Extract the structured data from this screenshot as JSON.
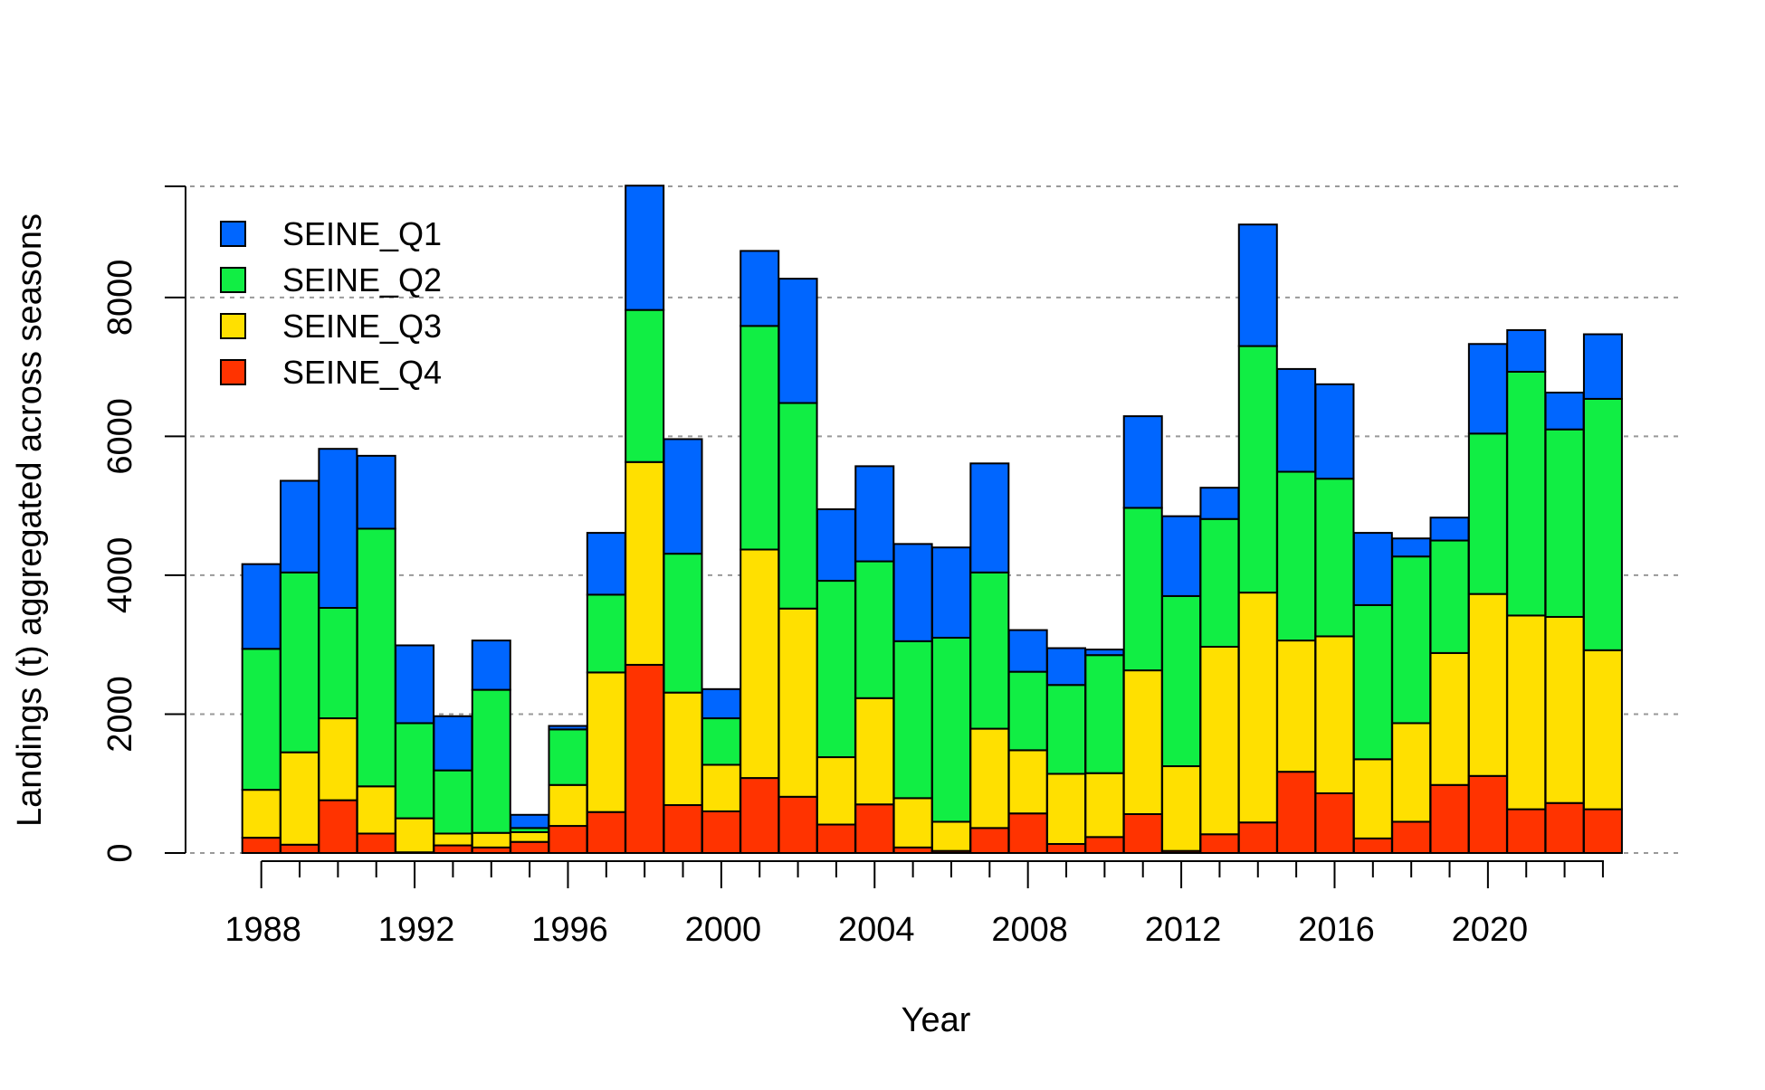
{
  "chart_data": {
    "type": "bar",
    "stacked": true,
    "xlabel": "Year",
    "ylabel": "Landings (t) aggregated across seasons",
    "ylim": [
      0,
      9600
    ],
    "yticks": [
      0,
      2000,
      4000,
      6000,
      8000
    ],
    "xtick_labels": [
      "1988",
      "1992",
      "1996",
      "2000",
      "2004",
      "2008",
      "2012",
      "2016",
      "2020"
    ],
    "grid": true,
    "legend_position": "top-left",
    "categories": [
      1988,
      1989,
      1990,
      1991,
      1992,
      1993,
      1994,
      1995,
      1996,
      1997,
      1998,
      1999,
      2000,
      2001,
      2002,
      2003,
      2004,
      2005,
      2006,
      2007,
      2008,
      2009,
      2010,
      2011,
      2012,
      2013,
      2014,
      2015,
      2016,
      2017,
      2018,
      2019,
      2020,
      2021,
      2022,
      2023
    ],
    "series": [
      {
        "name": "SEINE_Q4",
        "color": "#FF3300",
        "values": [
          220,
          120,
          760,
          280,
          10,
          110,
          80,
          160,
          390,
          590,
          2710,
          690,
          600,
          1080,
          810,
          410,
          700,
          80,
          30,
          360,
          570,
          130,
          230,
          560,
          30,
          270,
          440,
          1170,
          860,
          210,
          450,
          980,
          1110,
          630,
          720,
          630
        ]
      },
      {
        "name": "SEINE_Q3",
        "color": "#FFE000",
        "values": [
          690,
          1330,
          1180,
          680,
          490,
          170,
          210,
          140,
          590,
          2010,
          2920,
          1620,
          670,
          3290,
          2710,
          970,
          1530,
          710,
          420,
          1430,
          910,
          1010,
          920,
          2070,
          1220,
          2700,
          3310,
          1890,
          2260,
          1140,
          1420,
          1900,
          2620,
          2790,
          2680,
          2290
        ]
      },
      {
        "name": "SEINE_Q2",
        "color": "#11EE44",
        "values": [
          2030,
          2590,
          1590,
          3710,
          1370,
          910,
          2060,
          60,
          800,
          1120,
          2190,
          2000,
          670,
          3220,
          2960,
          2540,
          1970,
          2260,
          2650,
          2250,
          1130,
          1280,
          1700,
          2340,
          2450,
          1840,
          3550,
          2430,
          2270,
          2220,
          2400,
          1620,
          2310,
          3510,
          2700,
          3620
        ]
      },
      {
        "name": "SEINE_Q1",
        "color": "#0066FF",
        "values": [
          1220,
          1320,
          2290,
          1050,
          1120,
          780,
          710,
          190,
          50,
          890,
          1790,
          1650,
          420,
          1080,
          1790,
          1030,
          1370,
          1400,
          1300,
          1570,
          600,
          530,
          80,
          1320,
          1150,
          450,
          1750,
          1480,
          1360,
          1040,
          260,
          330,
          1290,
          600,
          530,
          930
        ]
      }
    ]
  }
}
